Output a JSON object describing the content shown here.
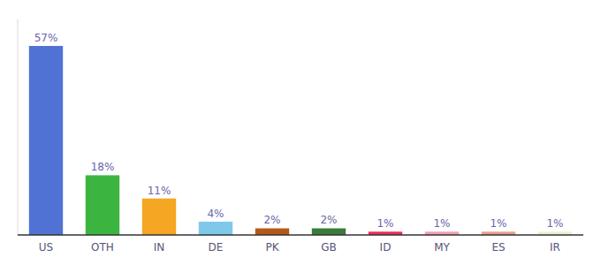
{
  "chart_data": {
    "type": "bar",
    "categories": [
      "US",
      "OTH",
      "IN",
      "DE",
      "PK",
      "GB",
      "ID",
      "MY",
      "ES",
      "IR"
    ],
    "values": [
      57,
      18,
      11,
      4,
      2,
      2,
      1,
      1,
      1,
      1
    ],
    "value_labels": [
      "57%",
      "18%",
      "11%",
      "4%",
      "2%",
      "2%",
      "1%",
      "1%",
      "1%",
      "1%"
    ],
    "colors": [
      "#4f72d4",
      "#3cb540",
      "#f5a623",
      "#7ec8ea",
      "#b35a1a",
      "#3a7a3a",
      "#e8315a",
      "#f0a0b5",
      "#e8a090",
      "#f0efd0"
    ],
    "ylim": [
      0,
      65
    ],
    "data_labels": true,
    "tick_labels": "x",
    "grid": false
  }
}
